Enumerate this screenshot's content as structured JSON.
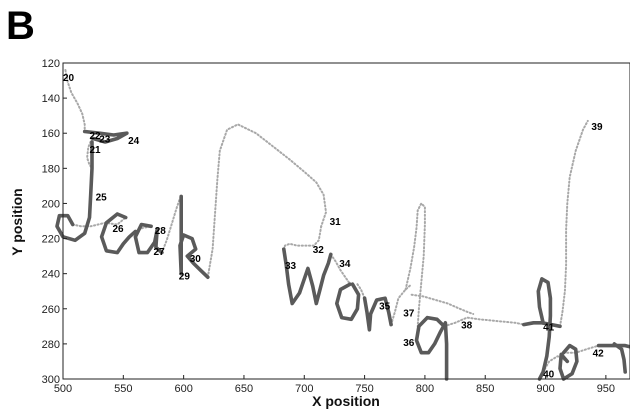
{
  "panel_label": "B",
  "chart_data": {
    "type": "line",
    "xlabel": "X position",
    "ylabel": "Y position",
    "xlim": [
      500,
      970
    ],
    "ylim": [
      120,
      300
    ],
    "y_inverted": true,
    "grid": false,
    "x_ticks": [
      500,
      550,
      600,
      650,
      700,
      750,
      800,
      850,
      900,
      950
    ],
    "y_ticks": [
      120,
      140,
      160,
      180,
      200,
      220,
      240,
      260,
      280,
      300
    ],
    "series": [
      {
        "role": "pen-down",
        "color": "#5a5a5a",
        "strokes": [
          [
            [
              518,
              159
            ],
            [
              530,
              160
            ],
            [
              542,
              161
            ],
            [
              553,
              160
            ],
            [
              545,
              163
            ],
            [
              535,
              165
            ],
            [
              525,
              163
            ]
          ],
          [
            [
              524,
              165
            ],
            [
              524,
              180
            ],
            [
              523,
              195
            ],
            [
              522,
              208
            ],
            [
              518,
              217
            ],
            [
              510,
              221
            ],
            [
              500,
              219
            ],
            [
              495,
              213
            ],
            [
              497,
              207
            ],
            [
              504,
              207
            ],
            [
              508,
              212
            ]
          ],
          [
            [
              552,
              208
            ],
            [
              545,
              206
            ],
            [
              536,
              211
            ],
            [
              532,
              219
            ],
            [
              536,
              227
            ],
            [
              545,
              228
            ],
            [
              550,
              223
            ],
            [
              555,
              219
            ],
            [
              560,
              216
            ]
          ],
          [
            [
              573,
              213
            ],
            [
              565,
              212
            ],
            [
              560,
              219
            ],
            [
              563,
              228
            ],
            [
              570,
              228
            ],
            [
              576,
              222
            ],
            [
              578,
              215
            ],
            [
              577,
              225
            ],
            [
              582,
              228
            ]
          ],
          [
            [
              598,
              196
            ],
            [
              598,
              212
            ],
            [
              598,
              228
            ],
            [
              598,
              240
            ],
            [
              597,
              224
            ],
            [
              600,
              218
            ],
            [
              607,
              220
            ],
            [
              610,
              226
            ],
            [
              603,
              230
            ],
            [
              608,
              234
            ],
            [
              614,
              238
            ],
            [
              620,
              242
            ]
          ],
          [
            [
              683,
              226
            ],
            [
              685,
              235
            ],
            [
              687,
              246
            ],
            [
              690,
              257
            ],
            [
              696,
              251
            ],
            [
              700,
              243
            ],
            [
              703,
              237
            ],
            [
              707,
              247
            ],
            [
              710,
              257
            ],
            [
              713,
              249
            ],
            [
              716,
              241
            ],
            [
              720,
              234
            ],
            [
              722,
              229
            ]
          ],
          [
            [
              738,
              246
            ],
            [
              730,
              249
            ],
            [
              727,
              257
            ],
            [
              731,
              265
            ],
            [
              739,
              266
            ],
            [
              744,
              260
            ],
            [
              745,
              252
            ],
            [
              740,
              246
            ]
          ],
          [
            [
              750,
              254
            ],
            [
              752,
              262
            ],
            [
              754,
              272
            ],
            [
              755,
              263
            ],
            [
              760,
              255
            ],
            [
              767,
              254
            ],
            [
              770,
              262
            ],
            [
              772,
              269
            ]
          ],
          [
            [
              816,
              270
            ],
            [
              810,
              266
            ],
            [
              802,
              265
            ],
            [
              795,
              270
            ],
            [
              793,
              278
            ],
            [
              797,
              285
            ],
            [
              803,
              285
            ],
            [
              808,
              280
            ],
            [
              813,
              273
            ],
            [
              817,
              268
            ],
            [
              818,
              280
            ],
            [
              818,
              292
            ],
            [
              818,
              300
            ]
          ],
          [
            [
              898,
              268
            ],
            [
              895,
              259
            ],
            [
              894,
              250
            ],
            [
              897,
              243
            ],
            [
              902,
              245
            ],
            [
              904,
              254
            ],
            [
              904,
              264
            ],
            [
              903,
              276
            ],
            [
              901,
              287
            ],
            [
              898,
              296
            ],
            [
              895,
              300
            ]
          ],
          [
            [
              882,
              269
            ],
            [
              890,
              268
            ],
            [
              897,
              268
            ],
            [
              905,
              269
            ],
            [
              912,
              270
            ]
          ],
          [
            [
              918,
              290
            ],
            [
              913,
              286
            ],
            [
              912,
              294
            ],
            [
              915,
              300
            ],
            [
              922,
              297
            ],
            [
              926,
              290
            ],
            [
              925,
              283
            ],
            [
              920,
              281
            ],
            [
              915,
              285
            ]
          ],
          [
            [
              957,
              280
            ],
            [
              963,
              283
            ],
            [
              965,
              289
            ],
            [
              966,
              296
            ]
          ],
          [
            [
              944,
              281
            ],
            [
              950,
              281
            ],
            [
              958,
              281
            ],
            [
              966,
              281
            ],
            [
              972,
              282
            ]
          ]
        ]
      },
      {
        "role": "pen-up",
        "color": "#a8a8a8",
        "strokes": [
          [
            [
              502,
              124
            ],
            [
              504,
              131
            ],
            [
              507,
              137
            ],
            [
              512,
              143
            ],
            [
              516,
              149
            ],
            [
              518,
              155
            ],
            [
              518,
              159
            ]
          ],
          [
            [
              524,
              163
            ],
            [
              521,
              168
            ],
            [
              520,
              174
            ],
            [
              522,
              178
            ],
            [
              524,
              180
            ]
          ],
          [
            [
              508,
              212
            ],
            [
              515,
              213
            ],
            [
              523,
              213
            ],
            [
              535,
              211
            ],
            [
              545,
              212
            ],
            [
              552,
              208
            ]
          ],
          [
            [
              560,
              216
            ],
            [
              566,
              214
            ],
            [
              573,
              213
            ]
          ],
          [
            [
              582,
              228
            ],
            [
              586,
              221
            ],
            [
              590,
              212
            ],
            [
              594,
              203
            ],
            [
              597,
              197
            ],
            [
              598,
              196
            ]
          ],
          [
            [
              620,
              242
            ],
            [
              624,
              226
            ],
            [
              626,
              206
            ],
            [
              628,
              186
            ],
            [
              630,
              170
            ],
            [
              636,
              158
            ],
            [
              645,
              155
            ],
            [
              660,
              160
            ],
            [
              675,
              168
            ],
            [
              688,
              175
            ],
            [
              700,
              182
            ],
            [
              710,
              188
            ],
            [
              716,
              195
            ],
            [
              718,
              205
            ],
            [
              714,
              213
            ]
          ],
          [
            [
              714,
              213
            ],
            [
              712,
              221
            ],
            [
              708,
              224
            ],
            [
              701,
              224
            ],
            [
              694,
              224
            ],
            [
              688,
              223
            ],
            [
              684,
              224
            ],
            [
              683,
              226
            ]
          ],
          [
            [
              722,
              229
            ],
            [
              726,
              233
            ],
            [
              730,
              238
            ],
            [
              735,
              243
            ],
            [
              738,
              246
            ]
          ],
          [
            [
              744,
              246
            ],
            [
              747,
              249
            ],
            [
              750,
              254
            ]
          ],
          [
            [
              772,
              269
            ],
            [
              775,
              262
            ],
            [
              778,
              254
            ],
            [
              784,
              249
            ],
            [
              789,
              246
            ]
          ],
          [
            [
              784,
              249
            ],
            [
              788,
              237
            ],
            [
              791,
              225
            ],
            [
              793,
              214
            ],
            [
              794,
              204
            ],
            [
              797,
              200
            ],
            [
              800,
              202
            ],
            [
              800,
              212
            ],
            [
              799,
              230
            ],
            [
              797,
              245
            ],
            [
              795,
              260
            ],
            [
              794,
              270
            ]
          ],
          [
            [
              789,
              252
            ],
            [
              799,
              253
            ],
            [
              809,
              255
            ],
            [
              819,
              257
            ],
            [
              829,
              260
            ],
            [
              836,
              262
            ],
            [
              840,
              263
            ]
          ],
          [
            [
              816,
              270
            ],
            [
              825,
              268
            ],
            [
              835,
              265
            ],
            [
              845,
              266
            ],
            [
              860,
              267
            ],
            [
              875,
              268
            ],
            [
              882,
              269
            ]
          ],
          [
            [
              912,
              270
            ],
            [
              914,
              262
            ],
            [
              916,
              250
            ],
            [
              917,
              235
            ],
            [
              917,
              215
            ],
            [
              918,
              200
            ],
            [
              920,
              185
            ],
            [
              925,
              170
            ],
            [
              931,
              158
            ],
            [
              935,
              153
            ]
          ],
          [
            [
              898,
              296
            ],
            [
              903,
              290
            ],
            [
              910,
              287
            ],
            [
              918,
              290
            ]
          ],
          [
            [
              915,
              285
            ],
            [
              925,
              285
            ],
            [
              934,
              283
            ],
            [
              944,
              281
            ]
          ]
        ]
      }
    ],
    "annotations": [
      {
        "label": "20",
        "x": 500,
        "y": 128
      },
      {
        "label": "22",
        "x": 522,
        "y": 161
      },
      {
        "label": "23",
        "x": 530,
        "y": 163
      },
      {
        "label": "24",
        "x": 554,
        "y": 164
      },
      {
        "label": "21",
        "x": 522,
        "y": 169
      },
      {
        "label": "25",
        "x": 527,
        "y": 196
      },
      {
        "label": "26",
        "x": 541,
        "y": 214
      },
      {
        "label": "28",
        "x": 576,
        "y": 215
      },
      {
        "label": "27",
        "x": 575,
        "y": 227
      },
      {
        "label": "30",
        "x": 605,
        "y": 231
      },
      {
        "label": "29",
        "x": 596,
        "y": 241
      },
      {
        "label": "31",
        "x": 721,
        "y": 210
      },
      {
        "label": "32",
        "x": 707,
        "y": 226
      },
      {
        "label": "33",
        "x": 684,
        "y": 235
      },
      {
        "label": "34",
        "x": 729,
        "y": 234
      },
      {
        "label": "35",
        "x": 762,
        "y": 258
      },
      {
        "label": "37",
        "x": 782,
        "y": 262
      },
      {
        "label": "36",
        "x": 782,
        "y": 279
      },
      {
        "label": "38",
        "x": 830,
        "y": 269
      },
      {
        "label": "39",
        "x": 938,
        "y": 156
      },
      {
        "label": "41",
        "x": 898,
        "y": 270
      },
      {
        "label": "42",
        "x": 939,
        "y": 285
      },
      {
        "label": "40",
        "x": 898,
        "y": 297
      }
    ]
  }
}
